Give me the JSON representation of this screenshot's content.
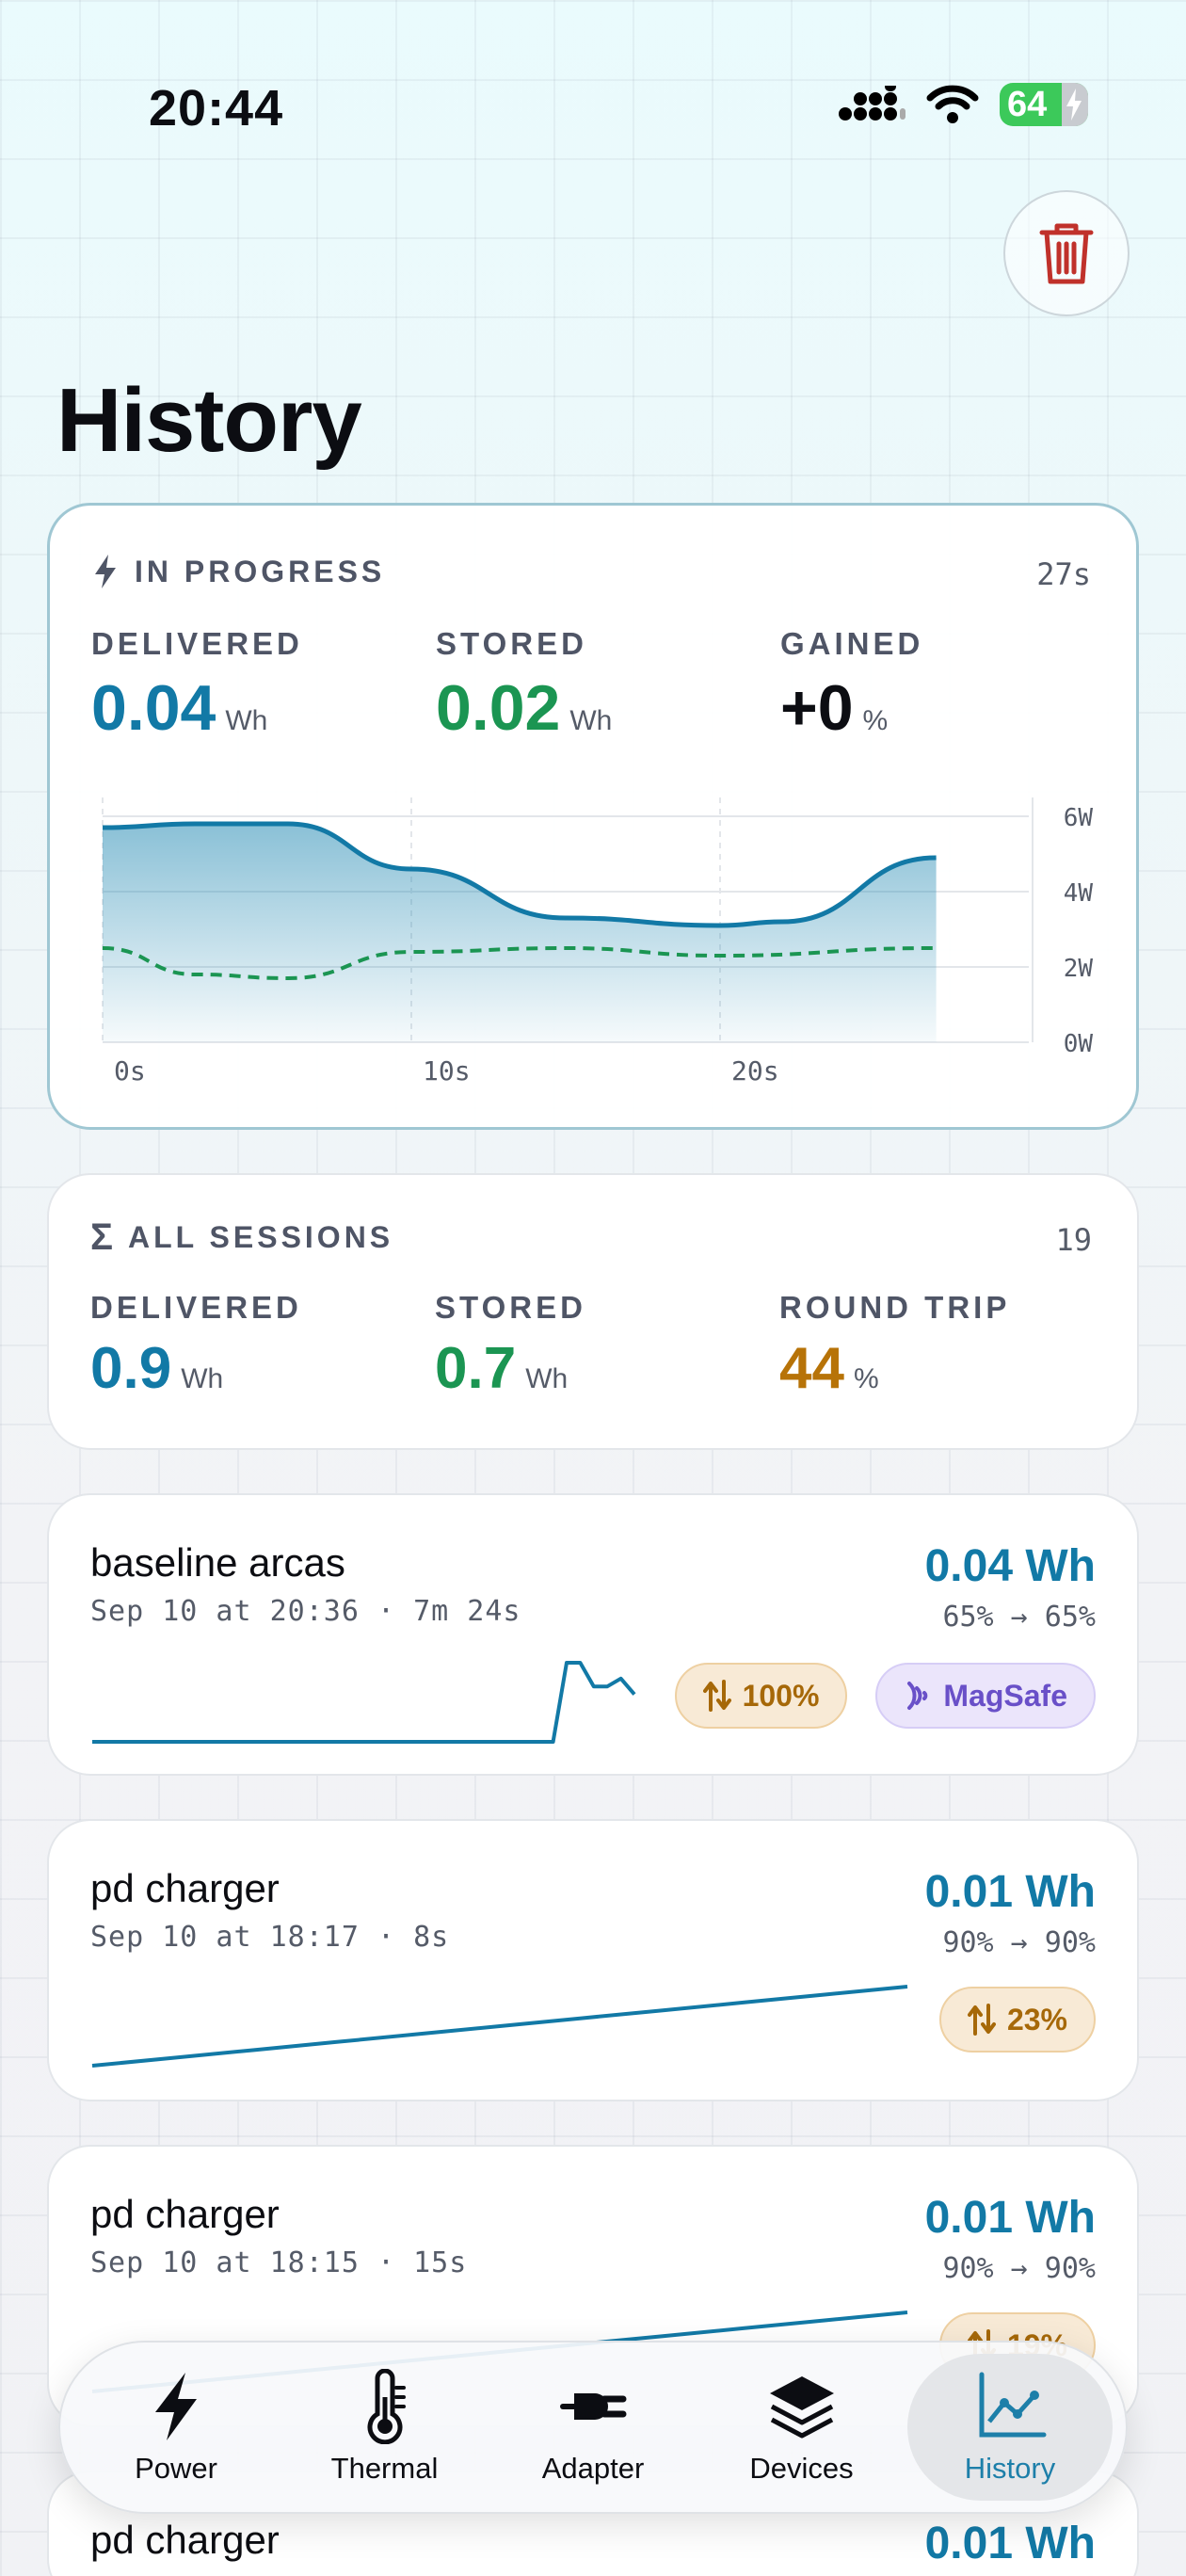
{
  "status_bar": {
    "time": "20:44",
    "battery": "64"
  },
  "header": {
    "title": "History",
    "trash_icon": "trash-icon"
  },
  "in_progress": {
    "label": "IN PROGRESS",
    "elapsed": "27s",
    "delivered": {
      "label": "DELIVERED",
      "value": "0.04",
      "unit": "Wh"
    },
    "stored": {
      "label": "STORED",
      "value": "0.02",
      "unit": "Wh"
    },
    "gained": {
      "label": "GAINED",
      "value": "+0",
      "unit": "%"
    },
    "chart_data": {
      "type": "area",
      "x_ticks": [
        "0s",
        "10s",
        "20s"
      ],
      "y_ticks": [
        "0W",
        "2W",
        "4W",
        "6W"
      ],
      "ylim": [
        0,
        6
      ],
      "xlim": [
        0,
        30
      ],
      "series": [
        {
          "x": [
            0,
            3,
            6,
            10,
            15,
            20,
            22,
            27
          ],
          "values": [
            5.7,
            5.8,
            5.8,
            4.6,
            3.3,
            3.1,
            3.2,
            4.9
          ],
          "color": "#1279a6"
        },
        {
          "x": [
            0,
            3,
            6,
            10,
            15,
            20,
            27
          ],
          "values": [
            2.5,
            1.8,
            1.7,
            2.4,
            2.5,
            2.3,
            2.5
          ],
          "color": "#1b9552",
          "style": "dashed"
        }
      ]
    }
  },
  "all_sessions": {
    "label": "ALL SESSIONS",
    "count": "19",
    "delivered": {
      "label": "DELIVERED",
      "value": "0.9",
      "unit": "Wh"
    },
    "stored": {
      "label": "STORED",
      "value": "0.7",
      "unit": "Wh"
    },
    "round_trip": {
      "label": "ROUND TRIP",
      "value": "44",
      "unit": "%"
    }
  },
  "sessions": [
    {
      "name": "baseline arcas",
      "meta": "Sep 10 at 20:36 · 7m 24s",
      "energy": "0.04 Wh",
      "battery": "65% → 65%",
      "round_trip": "100%",
      "source": "MagSafe",
      "spark": [
        0,
        0,
        0,
        0,
        0,
        0,
        0,
        0,
        0,
        0,
        0,
        0,
        0,
        0,
        0,
        0,
        0,
        0,
        0,
        0,
        0,
        0,
        0,
        0,
        0,
        0,
        0,
        0,
        0,
        0,
        0,
        0,
        0,
        0,
        0,
        1,
        1,
        0.7,
        0.7,
        0.8,
        0.6
      ]
    },
    {
      "name": "pd charger",
      "meta": "Sep 10 at 18:17 · 8s",
      "energy": "0.01 Wh",
      "battery": "90% → 90%",
      "round_trip": "23%",
      "spark": [
        0,
        0.1,
        0.2,
        0.3,
        0.4,
        0.5,
        0.6,
        0.7,
        0.8,
        0.9,
        1
      ]
    },
    {
      "name": "pd charger",
      "meta": "Sep 10 at 18:15 · 15s",
      "energy": "0.01 Wh",
      "battery": "90% → 90%",
      "round_trip": "19%",
      "spark": [
        0,
        0.1,
        0.2,
        0.3,
        0.4,
        0.5,
        0.6,
        0.7,
        0.8,
        0.9,
        1
      ]
    },
    {
      "name": "pd charger",
      "energy": "0.01 Wh"
    }
  ],
  "tabs": [
    {
      "label": "Power",
      "icon": "bolt-icon"
    },
    {
      "label": "Thermal",
      "icon": "thermometer-icon"
    },
    {
      "label": "Adapter",
      "icon": "plug-icon"
    },
    {
      "label": "Devices",
      "icon": "layers-icon"
    },
    {
      "label": "History",
      "icon": "chart-icon",
      "active": true
    }
  ]
}
